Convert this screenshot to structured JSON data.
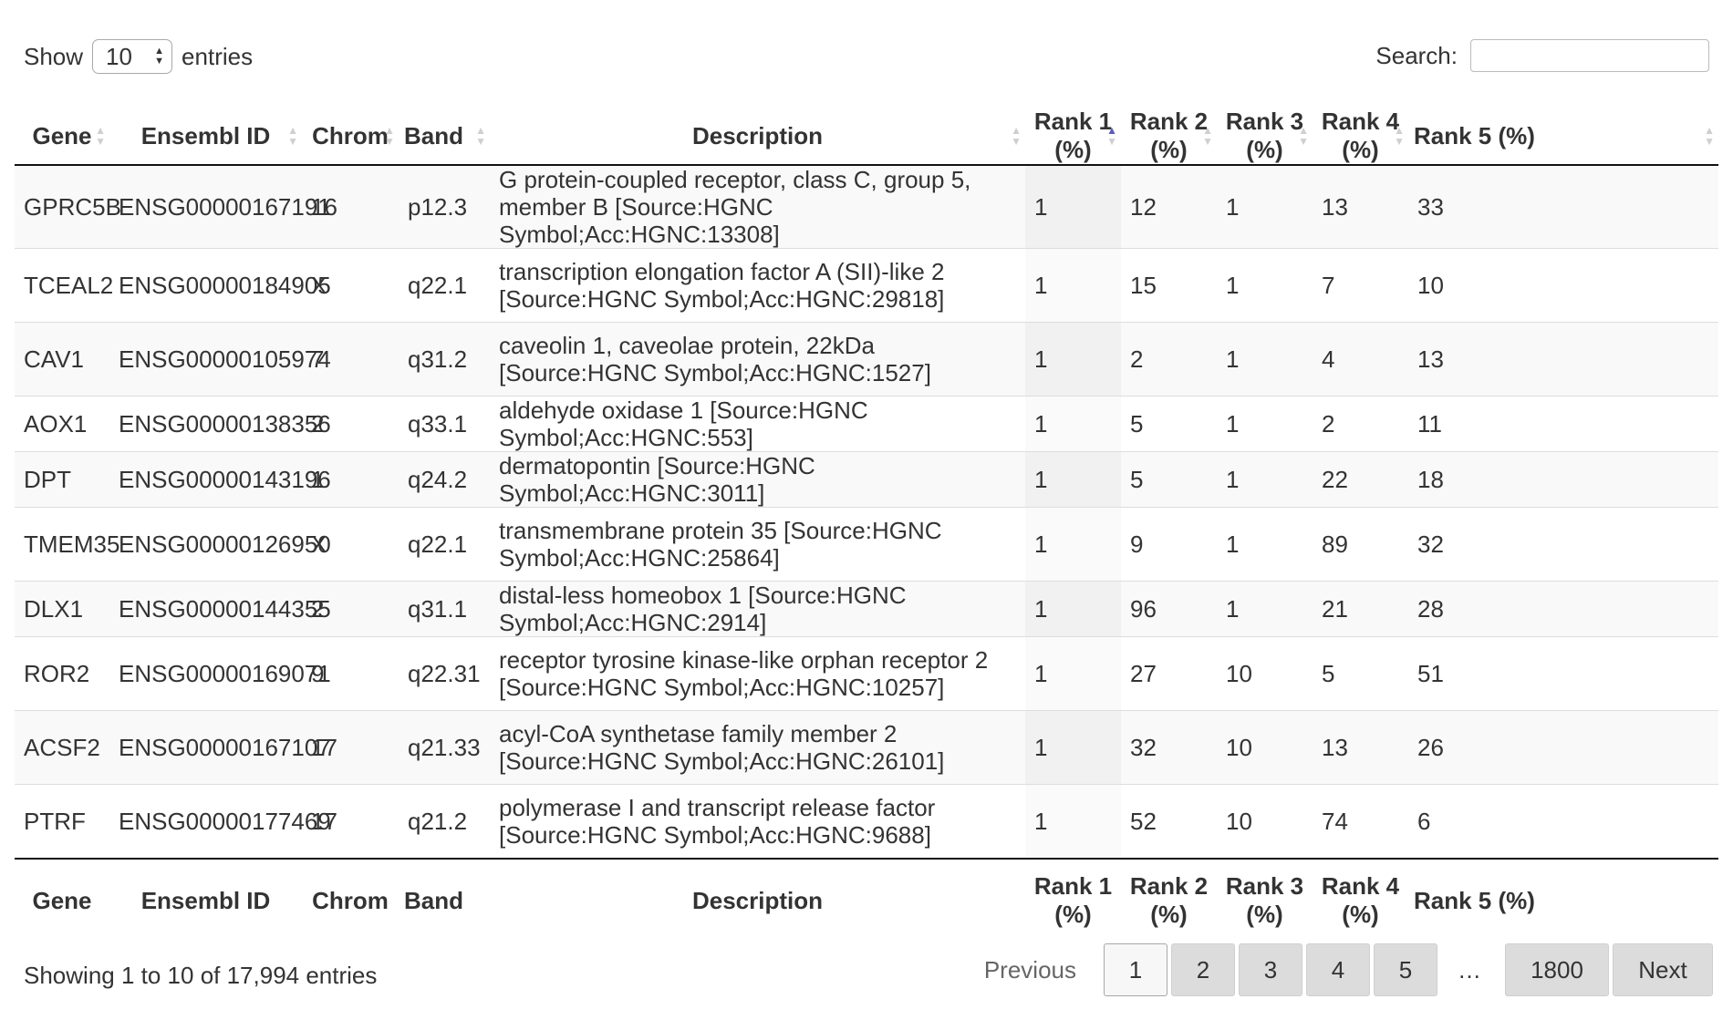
{
  "length_menu": {
    "show_label": "Show",
    "selected": "10",
    "entries_label": "entries"
  },
  "search": {
    "label": "Search:",
    "value": ""
  },
  "columns": [
    {
      "head": "Gene",
      "foot": "Gene"
    },
    {
      "head": "Ensembl ID",
      "foot": "Ensembl ID"
    },
    {
      "head": "Chrom",
      "foot": "Chrom"
    },
    {
      "head": "Band",
      "foot": "Band"
    },
    {
      "head": "Description",
      "foot": "Description"
    },
    {
      "head": "Rank 1 (%)",
      "foot": "Rank 1 (%)"
    },
    {
      "head": "Rank 2 (%)",
      "foot": "Rank 2 (%)"
    },
    {
      "head": "Rank 3 (%)",
      "foot": "Rank 3 (%)"
    },
    {
      "head": "Rank 4 (%)",
      "foot": "Rank 4 (%)"
    },
    {
      "head": "Rank 5 (%)",
      "foot": "Rank 5 (%)"
    }
  ],
  "sorted_column": "Rank 1 (%)",
  "sort_direction": "ascending",
  "rows": [
    [
      "GPRC5B",
      "ENSG00000167191",
      "16",
      "p12.3",
      "G protein-coupled receptor, class C, group 5, member B [Source:HGNC Symbol;Acc:HGNC:13308]",
      "1",
      "12",
      "1",
      "13",
      "33"
    ],
    [
      "TCEAL2",
      "ENSG00000184905",
      "X",
      "q22.1",
      "transcription elongation factor A (SII)-like 2 [Source:HGNC Symbol;Acc:HGNC:29818]",
      "1",
      "15",
      "1",
      "7",
      "10"
    ],
    [
      "CAV1",
      "ENSG00000105974",
      "7",
      "q31.2",
      "caveolin 1, caveolae protein, 22kDa [Source:HGNC Symbol;Acc:HGNC:1527]",
      "1",
      "2",
      "1",
      "4",
      "13"
    ],
    [
      "AOX1",
      "ENSG00000138356",
      "2",
      "q33.1",
      "aldehyde oxidase 1 [Source:HGNC Symbol;Acc:HGNC:553]",
      "1",
      "5",
      "1",
      "2",
      "11"
    ],
    [
      "DPT",
      "ENSG00000143196",
      "1",
      "q24.2",
      "dermatopontin [Source:HGNC Symbol;Acc:HGNC:3011]",
      "1",
      "5",
      "1",
      "22",
      "18"
    ],
    [
      "TMEM35",
      "ENSG00000126950",
      "X",
      "q22.1",
      "transmembrane protein 35 [Source:HGNC Symbol;Acc:HGNC:25864]",
      "1",
      "9",
      "1",
      "89",
      "32"
    ],
    [
      "DLX1",
      "ENSG00000144355",
      "2",
      "q31.1",
      "distal-less homeobox 1 [Source:HGNC Symbol;Acc:HGNC:2914]",
      "1",
      "96",
      "1",
      "21",
      "28"
    ],
    [
      "ROR2",
      "ENSG00000169071",
      "9",
      "q22.31",
      "receptor tyrosine kinase-like orphan receptor 2 [Source:HGNC Symbol;Acc:HGNC:10257]",
      "1",
      "27",
      "10",
      "5",
      "51"
    ],
    [
      "ACSF2",
      "ENSG00000167107",
      "17",
      "q21.33",
      "acyl-CoA synthetase family member 2 [Source:HGNC Symbol;Acc:HGNC:26101]",
      "1",
      "32",
      "10",
      "13",
      "26"
    ],
    [
      "PTRF",
      "ENSG00000177469",
      "17",
      "q21.2",
      "polymerase I and transcript release factor [Source:HGNC Symbol;Acc:HGNC:9688]",
      "1",
      "52",
      "10",
      "74",
      "6"
    ]
  ],
  "info": "Showing 1 to 10 of 17,994 entries",
  "pagination": {
    "previous": "Previous",
    "pages": [
      "1",
      "2",
      "3",
      "4",
      "5"
    ],
    "current": "1",
    "ellipsis": "…",
    "last": "1800",
    "next": "Next"
  }
}
